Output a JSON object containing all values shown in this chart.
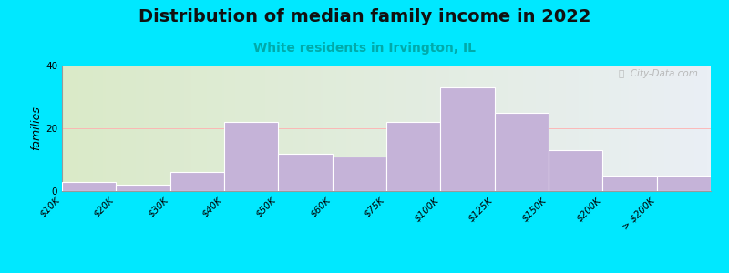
{
  "title": "Distribution of median family income in 2022",
  "subtitle": "White residents in Irvington, IL",
  "categories": [
    "$10K",
    "$20K",
    "$30K",
    "$40K",
    "$50K",
    "$60K",
    "$75K",
    "$100K",
    "$125K",
    "$150K",
    "$200K",
    "> $200K"
  ],
  "values": [
    3,
    2,
    6,
    22,
    12,
    11,
    22,
    33,
    25,
    13,
    5,
    5
  ],
  "bar_color": "#c5b3d8",
  "bar_edgecolor": "#ffffff",
  "background_outer": "#00e8ff",
  "background_inner_left": "#daeac8",
  "background_inner_right": "#eaeff5",
  "ylabel": "families",
  "ylim": [
    0,
    40
  ],
  "yticks": [
    0,
    20,
    40
  ],
  "title_fontsize": 14,
  "subtitle_fontsize": 10,
  "subtitle_color": "#00aaaa",
  "ylabel_fontsize": 9,
  "tick_fontsize": 7.5,
  "watermark": "ⓘ  City-Data.com"
}
